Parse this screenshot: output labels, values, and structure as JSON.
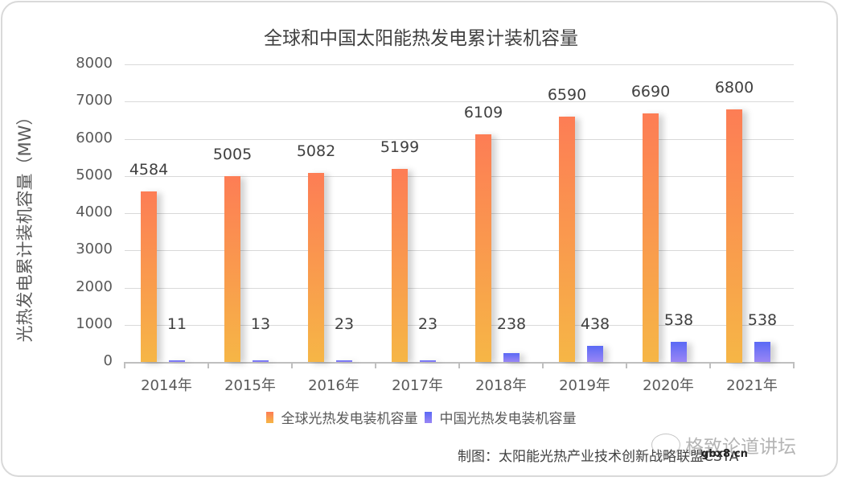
{
  "title": "全球和中国太阳能热发电累计装机容量",
  "y_axis_label": "光热发电累计装机容量（MW）",
  "y_ticks": [
    "0",
    "1000",
    "2000",
    "3000",
    "4000",
    "5000",
    "6000",
    "7000",
    "8000"
  ],
  "legend": {
    "global": "全球光热发电装机容量",
    "china": "中国光热发电装机容量"
  },
  "source": "制图：太阳能光热产业技术创新战略联盟CSTA",
  "watermark": {
    "text": "格致论道讲坛",
    "sub": "gbx8.cn"
  },
  "colors": {
    "global_top": "#fd7d55",
    "global_bottom": "#f6b646",
    "china_top": "#5a69f5",
    "china_bottom": "#9a86f5"
  },
  "chart_data": {
    "type": "bar",
    "title": "全球和中国太阳能热发电累计装机容量",
    "xlabel": "",
    "ylabel": "光热发电累计装机容量（MW）",
    "ylim": [
      0,
      8000
    ],
    "grid": true,
    "legend_position": "bottom",
    "categories": [
      "2014年",
      "2015年",
      "2016年",
      "2017年",
      "2018年",
      "2019年",
      "2020年",
      "2021年"
    ],
    "series": [
      {
        "name": "全球光热发电装机容量",
        "values": [
          4584,
          5005,
          5082,
          5199,
          6109,
          6590,
          6690,
          6800
        ]
      },
      {
        "name": "中国光热发电装机容量",
        "values": [
          11,
          13,
          23,
          23,
          238,
          438,
          538,
          538
        ]
      }
    ]
  }
}
